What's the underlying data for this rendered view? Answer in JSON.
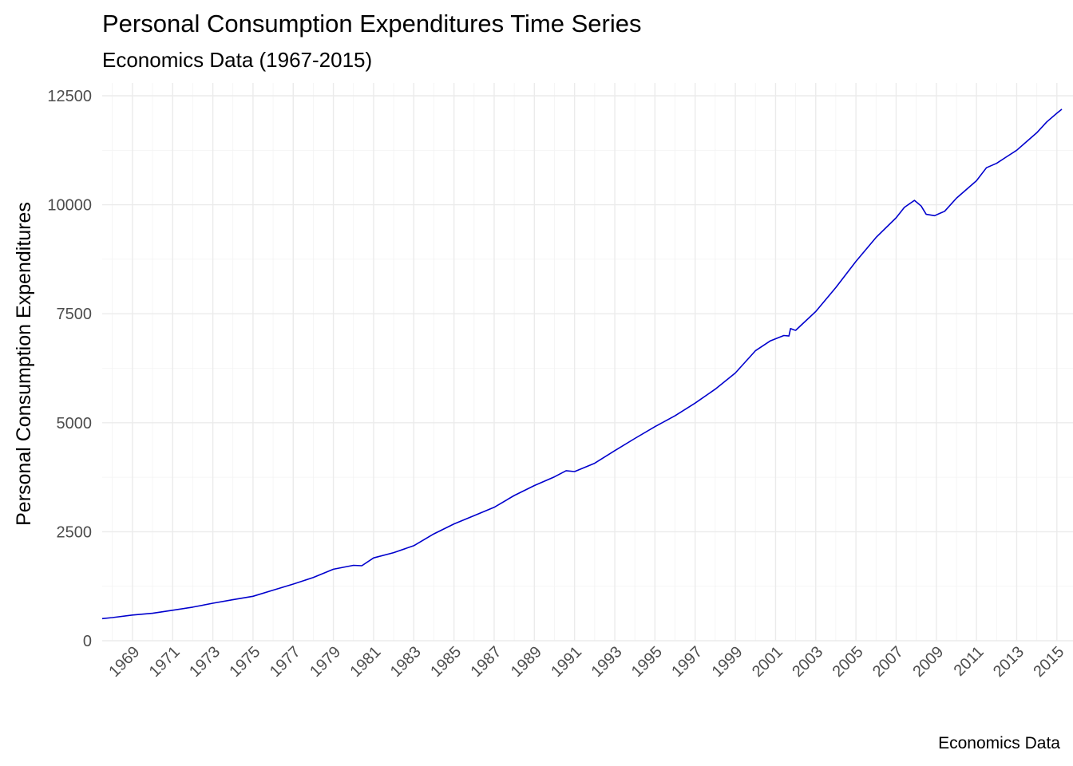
{
  "chart_data": {
    "type": "line",
    "title": "Personal Consumption Expenditures Time Series",
    "subtitle": "Economics Data (1967-2015)",
    "xlabel": "",
    "ylabel": "Personal Consumption Expenditures",
    "caption": "Economics Data",
    "xlim": [
      "1967-07-01",
      "2015-04-01"
    ],
    "ylim": [
      0,
      12500
    ],
    "yticks": [
      0,
      2500,
      5000,
      7500,
      10000,
      12500
    ],
    "xticks": [
      "1969",
      "1971",
      "1973",
      "1975",
      "1977",
      "1979",
      "1981",
      "1983",
      "1985",
      "1987",
      "1989",
      "1991",
      "1993",
      "1995",
      "1997",
      "1999",
      "2001",
      "2003",
      "2005",
      "2007",
      "2009",
      "2011",
      "2013",
      "2015"
    ],
    "grid": true,
    "line_color": "#0000CD",
    "series": [
      {
        "x": [
          "1967-07-01",
          "1968-01-01",
          "1969-01-01",
          "1970-01-01",
          "1971-01-01",
          "1972-01-01",
          "1973-01-01",
          "1974-01-01",
          "1975-01-01",
          "1976-01-01",
          "1977-01-01",
          "1978-01-01",
          "1979-01-01",
          "1980-01-01",
          "1980-06-01",
          "1981-01-01",
          "1982-01-01",
          "1983-01-01",
          "1984-01-01",
          "1985-01-01",
          "1986-01-01",
          "1987-01-01",
          "1988-01-01",
          "1989-01-01",
          "1990-01-01",
          "1990-08-01",
          "1991-01-01",
          "1992-01-01",
          "1993-01-01",
          "1994-01-01",
          "1995-01-01",
          "1996-01-01",
          "1997-01-01",
          "1998-01-01",
          "1999-01-01",
          "2000-01-01",
          "2000-10-01",
          "2001-06-01",
          "2001-09-01",
          "2001-10-01",
          "2001-12-01",
          "2002-01-01",
          "2003-01-01",
          "2004-01-01",
          "2005-01-01",
          "2006-01-01",
          "2007-01-01",
          "2007-06-01",
          "2007-12-01",
          "2008-04-01",
          "2008-07-01",
          "2008-12-01",
          "2009-03-01",
          "2009-06-01",
          "2010-01-01",
          "2011-01-01",
          "2011-07-01",
          "2012-01-01",
          "2012-07-01",
          "2013-01-01",
          "2013-07-01",
          "2014-01-01",
          "2014-07-01",
          "2015-01-01",
          "2015-04-01"
        ],
        "values": [
          507,
          530,
          590,
          630,
          700,
          770,
          860,
          940,
          1020,
          1160,
          1300,
          1450,
          1640,
          1730,
          1720,
          1900,
          2020,
          2180,
          2450,
          2680,
          2870,
          3060,
          3330,
          3560,
          3760,
          3900,
          3880,
          4070,
          4360,
          4640,
          4910,
          5160,
          5450,
          5770,
          6140,
          6650,
          6880,
          7000,
          6990,
          7160,
          7130,
          7120,
          7550,
          8100,
          8700,
          9250,
          9700,
          9940,
          10100,
          9970,
          9780,
          9750,
          9800,
          9850,
          10150,
          10550,
          10850,
          10950,
          11100,
          11250,
          11450,
          11650,
          11900,
          12100,
          12190
        ]
      }
    ]
  }
}
